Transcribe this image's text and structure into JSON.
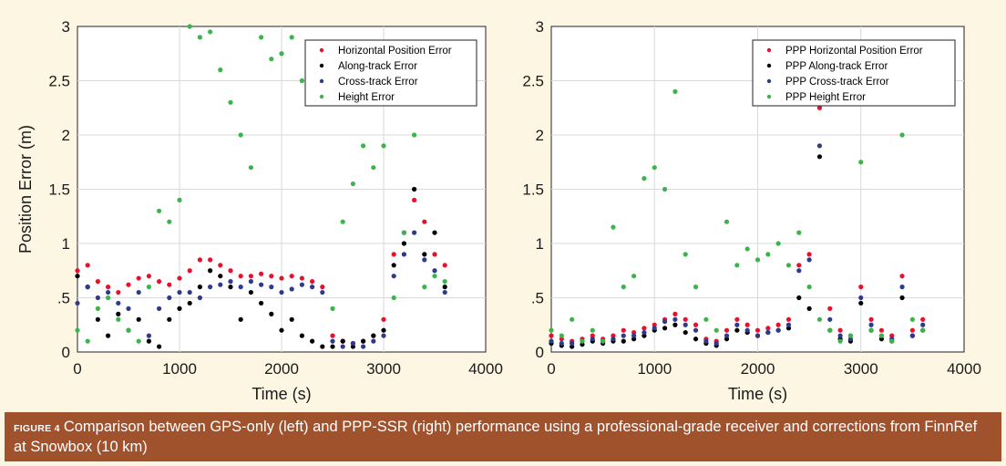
{
  "caption": {
    "label": "FIGURE 4",
    "text": "Comparison between GPS-only (left) and PPP-SSR (right) performance using a professional-grade receiver and corrections from FinnRef at Snowbox (10 km)"
  },
  "chart_data": [
    {
      "type": "scatter",
      "panel": "left",
      "title": "",
      "xlabel": "Time (s)",
      "ylabel": "Position Error (m)",
      "xlim": [
        0,
        4000
      ],
      "ylim": [
        0,
        3
      ],
      "xticks": [
        "0",
        "1000",
        "2000",
        "3000",
        "4000"
      ],
      "yticks": [
        "0",
        ".5",
        "1",
        "1.5",
        "2",
        "2.5",
        "3"
      ],
      "grid": true,
      "legend_position": "top-right",
      "x": [
        0,
        100,
        200,
        300,
        400,
        500,
        600,
        700,
        800,
        900,
        1000,
        1100,
        1200,
        1300,
        1400,
        1500,
        1600,
        1700,
        1800,
        1900,
        2000,
        2100,
        2200,
        2300,
        2400,
        2500,
        2600,
        2700,
        2800,
        2900,
        3000,
        3100,
        3200,
        3300,
        3400,
        3500,
        3600
      ],
      "series": [
        {
          "name": "Horizontal Position Error",
          "color": "#e8112d",
          "values": [
            0.75,
            0.8,
            0.65,
            0.6,
            0.55,
            0.62,
            0.68,
            0.7,
            0.65,
            0.62,
            0.68,
            0.75,
            0.85,
            0.85,
            0.8,
            0.75,
            0.7,
            0.7,
            0.72,
            0.7,
            0.68,
            0.7,
            0.68,
            0.65,
            0.6,
            0.15,
            0.1,
            0.08,
            0.1,
            0.15,
            0.3,
            0.9,
            1.1,
            1.4,
            1.2,
            0.9,
            0.8
          ]
        },
        {
          "name": "Along-track Error",
          "color": "#000000",
          "values": [
            0.7,
            0.6,
            0.3,
            0.15,
            0.35,
            0.2,
            0.3,
            0.1,
            0.05,
            0.3,
            0.4,
            0.45,
            0.6,
            0.75,
            0.7,
            0.6,
            0.3,
            0.55,
            0.45,
            0.35,
            0.2,
            0.3,
            0.15,
            0.1,
            0.05,
            0.05,
            0.1,
            0.05,
            0.1,
            0.15,
            0.2,
            0.8,
            1.0,
            1.5,
            0.9,
            1.1,
            0.6
          ]
        },
        {
          "name": "Cross-track Error",
          "color": "#2e3a8c",
          "values": [
            0.45,
            0.6,
            0.5,
            0.55,
            0.45,
            0.4,
            0.55,
            0.15,
            0.4,
            0.5,
            0.55,
            0.55,
            0.5,
            0.6,
            0.62,
            0.65,
            0.6,
            0.65,
            0.62,
            0.6,
            0.55,
            0.58,
            0.62,
            0.6,
            0.55,
            0.1,
            0.05,
            0.08,
            0.05,
            0.1,
            0.15,
            0.7,
            0.9,
            1.1,
            0.85,
            0.75,
            0.55
          ]
        },
        {
          "name": "Height Error",
          "color": "#3cb44b",
          "values": [
            0.2,
            0.1,
            0.4,
            0.5,
            0.3,
            0.2,
            0.1,
            0.6,
            1.3,
            1.2,
            1.4,
            3.0,
            2.9,
            2.95,
            2.6,
            2.3,
            2.0,
            1.7,
            2.9,
            2.7,
            2.75,
            2.9,
            2.5,
            2.6,
            2.7,
            0.4,
            1.2,
            1.55,
            1.9,
            1.7,
            1.9,
            0.5,
            1.1,
            2.0,
            0.6,
            0.7,
            0.65
          ]
        }
      ]
    },
    {
      "type": "scatter",
      "panel": "right",
      "title": "",
      "xlabel": "Time (s)",
      "ylabel": "",
      "xlim": [
        0,
        4000
      ],
      "ylim": [
        0,
        3
      ],
      "xticks": [
        "0",
        "1000",
        "2000",
        "3000",
        "4000"
      ],
      "yticks": [
        "0",
        ".5",
        "1",
        "1.5",
        "2",
        "2.5",
        "3"
      ],
      "grid": true,
      "legend_position": "top-right",
      "x": [
        0,
        100,
        200,
        300,
        400,
        500,
        600,
        700,
        800,
        900,
        1000,
        1100,
        1200,
        1300,
        1400,
        1500,
        1600,
        1700,
        1800,
        1900,
        2000,
        2100,
        2200,
        2300,
        2400,
        2500,
        2600,
        2700,
        2800,
        2900,
        3000,
        3100,
        3200,
        3300,
        3400,
        3500,
        3600
      ],
      "series": [
        {
          "name": "PPP Horizontal Position Error",
          "color": "#e8112d",
          "values": [
            0.15,
            0.12,
            0.1,
            0.12,
            0.15,
            0.12,
            0.15,
            0.2,
            0.18,
            0.22,
            0.25,
            0.3,
            0.35,
            0.3,
            0.25,
            0.12,
            0.1,
            0.2,
            0.3,
            0.25,
            0.2,
            0.22,
            0.25,
            0.3,
            0.8,
            0.9,
            2.25,
            0.4,
            0.2,
            0.15,
            0.6,
            0.3,
            0.2,
            0.15,
            0.7,
            0.2,
            0.3
          ]
        },
        {
          "name": "PPP Along-track Error",
          "color": "#000000",
          "values": [
            0.08,
            0.06,
            0.05,
            0.07,
            0.1,
            0.08,
            0.1,
            0.1,
            0.12,
            0.15,
            0.2,
            0.22,
            0.25,
            0.18,
            0.12,
            0.08,
            0.06,
            0.12,
            0.2,
            0.18,
            0.15,
            0.18,
            0.2,
            0.22,
            0.5,
            0.4,
            1.8,
            0.2,
            0.12,
            0.1,
            0.45,
            0.2,
            0.12,
            0.1,
            0.5,
            0.15,
            0.2
          ]
        },
        {
          "name": "PPP Cross-track Error",
          "color": "#2e3a8c",
          "values": [
            0.1,
            0.08,
            0.08,
            0.1,
            0.12,
            0.1,
            0.12,
            0.15,
            0.15,
            0.18,
            0.22,
            0.28,
            0.3,
            0.25,
            0.2,
            0.1,
            0.08,
            0.15,
            0.25,
            0.2,
            0.15,
            0.18,
            0.2,
            0.25,
            0.75,
            0.85,
            1.9,
            0.3,
            0.15,
            0.12,
            0.5,
            0.25,
            0.15,
            0.12,
            0.6,
            0.15,
            0.25
          ]
        },
        {
          "name": "PPP Height Error",
          "color": "#3cb44b",
          "values": [
            0.2,
            0.15,
            0.3,
            0.1,
            0.2,
            0.1,
            1.15,
            0.6,
            0.7,
            1.6,
            1.7,
            1.5,
            2.4,
            0.9,
            0.6,
            0.3,
            0.2,
            1.2,
            0.8,
            0.95,
            0.85,
            0.9,
            1.0,
            0.8,
            1.1,
            0.6,
            0.3,
            0.2,
            0.1,
            0.15,
            1.75,
            0.2,
            0.15,
            0.1,
            2.0,
            0.3,
            0.2
          ]
        }
      ]
    }
  ]
}
